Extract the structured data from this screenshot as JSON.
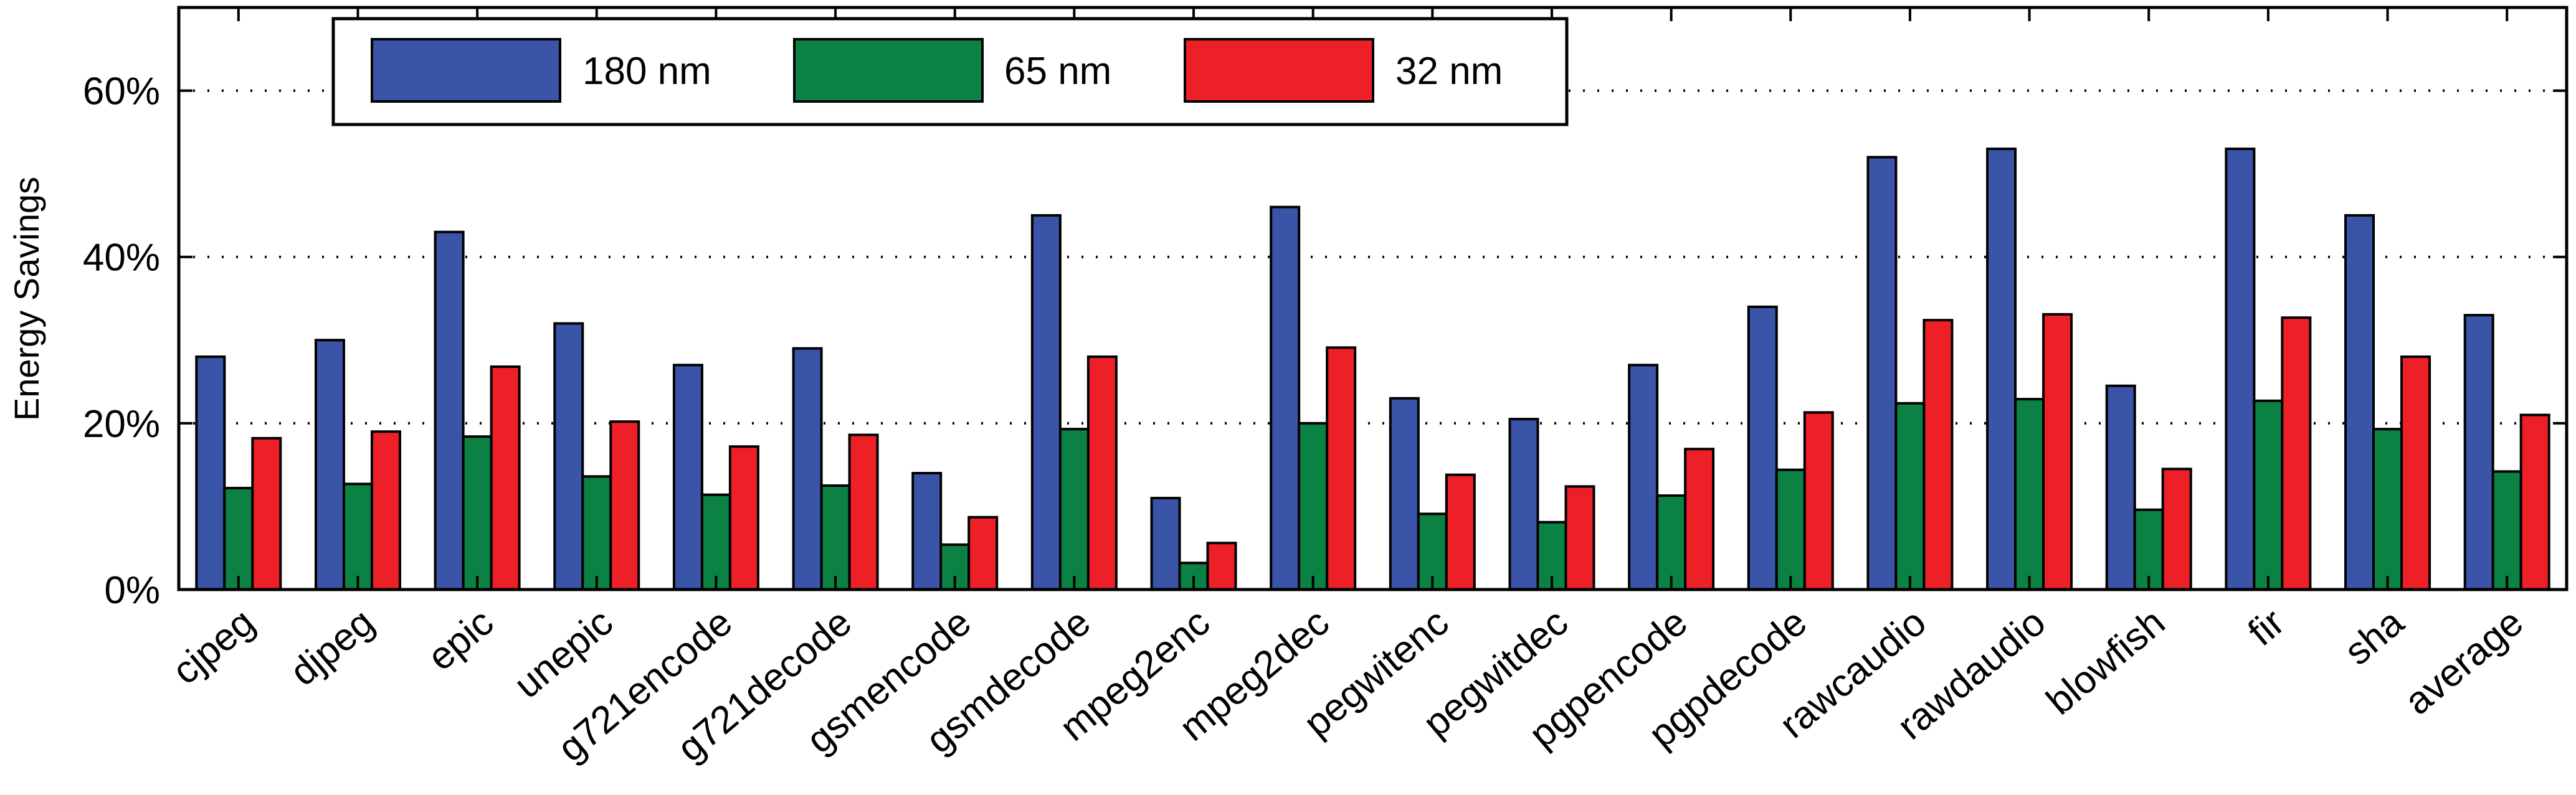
{
  "chart_data": {
    "type": "bar",
    "title": "",
    "xlabel": "",
    "ylabel": "Energy Savings",
    "ylim": [
      0,
      70
    ],
    "yticks": [
      0,
      20,
      40,
      60
    ],
    "ytick_labels": [
      "0%",
      "20%",
      "40%",
      "60%"
    ],
    "grid": "horizontal dotted",
    "legend_position": "top-left",
    "categories": [
      "cjpeg",
      "djpeg",
      "epic",
      "unepic",
      "g721encode",
      "g721decode",
      "gsmencode",
      "gsmdecode",
      "mpeg2enc",
      "mpeg2dec",
      "pegwitenc",
      "pegwitdec",
      "pgpencode",
      "pgpdecode",
      "rawcaudio",
      "rawdaudio",
      "blowfish",
      "fir",
      "sha",
      "average"
    ],
    "series": [
      {
        "name": "180 nm",
        "color": "#3a55a8",
        "values": [
          28,
          30,
          43,
          32,
          27,
          29,
          14,
          45,
          11,
          46,
          23,
          20.5,
          27,
          34,
          52,
          53,
          24.5,
          53,
          45,
          33
        ]
      },
      {
        "name": "65 nm",
        "color": "#0b8244",
        "values": [
          12.2,
          12.7,
          18.4,
          13.6,
          11.4,
          12.5,
          5.4,
          19.3,
          3.2,
          20,
          9.1,
          8.1,
          11.3,
          14.4,
          22.4,
          22.9,
          9.6,
          22.7,
          19.3,
          14.2
        ]
      },
      {
        "name": "32 nm",
        "color": "#ee2027",
        "values": [
          18.2,
          19,
          26.8,
          20.2,
          17.2,
          18.6,
          8.7,
          28,
          5.6,
          29.1,
          13.8,
          12.4,
          16.9,
          21.3,
          32.4,
          33.1,
          14.5,
          32.7,
          28,
          21
        ]
      }
    ]
  }
}
